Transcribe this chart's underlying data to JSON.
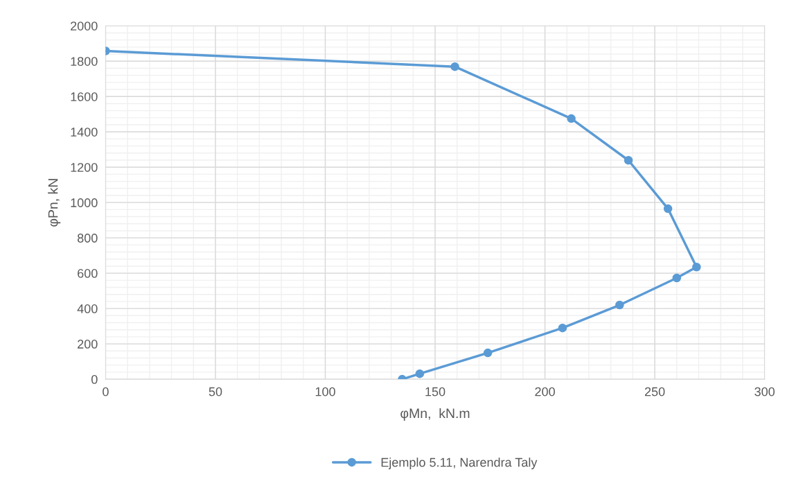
{
  "chart_data": {
    "type": "line",
    "xlabel": "φMn,  kN.m",
    "ylabel": "φPn, kN",
    "series": [
      {
        "name": "Ejemplo 5.11, Narendra Taly",
        "color": "#5b9bd5",
        "x": [
          0,
          159,
          212,
          238,
          256,
          269,
          260,
          234,
          208,
          174,
          143,
          135
        ],
        "values": [
          1858,
          1769,
          1475,
          1239,
          965,
          635,
          573,
          420,
          290,
          149,
          31,
          0
        ]
      }
    ],
    "xlim": [
      0,
      300
    ],
    "xticks": [
      0,
      50,
      100,
      150,
      200,
      250,
      300
    ],
    "ylim": [
      0,
      2000
    ],
    "yticks": [
      0,
      200,
      400,
      600,
      800,
      1000,
      1200,
      1400,
      1600,
      1800,
      2000
    ],
    "grid": true,
    "legend": "bottom",
    "marker": "circle",
    "line_style": "solid"
  }
}
